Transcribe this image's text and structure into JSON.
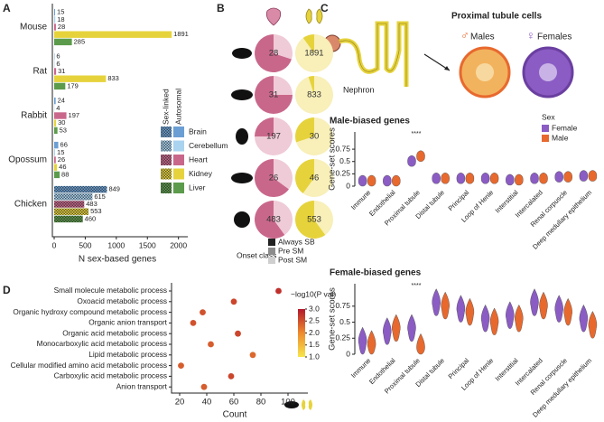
{
  "panels": [
    "A",
    "B",
    "C",
    "D"
  ],
  "diagram": {
    "title": "Proximal tubule cells",
    "male_symbol": "♂",
    "males": "Males",
    "female_symbol": "♀",
    "females": "Females",
    "nephron": "Nephron"
  },
  "chart_data": [
    {
      "type": "bar",
      "categories": [
        "Mouse",
        "Rat",
        "Rabbit",
        "Opossum",
        "Chicken"
      ],
      "series": [
        {
          "name": "Brain",
          "color": "#6b9fd3",
          "values": [
            15,
            6,
            24,
            66,
            849
          ]
        },
        {
          "name": "Cerebellum",
          "color": "#a9d3ef",
          "values": [
            18,
            6,
            4,
            15,
            615
          ]
        },
        {
          "name": "Heart",
          "color": "#c9678b",
          "values": [
            28,
            31,
            197,
            26,
            483
          ]
        },
        {
          "name": "Kidney",
          "color": "#e6d33c",
          "values": [
            1891,
            833,
            30,
            46,
            553
          ]
        },
        {
          "name": "Liver",
          "color": "#5c9b4b",
          "values": [
            285,
            179,
            53,
            88,
            460
          ]
        }
      ],
      "hatched": [
        false,
        false,
        false,
        false,
        true
      ],
      "legend_headers": [
        "Sex-linked",
        "Autosomal"
      ],
      "xlim": [
        0,
        2150
      ],
      "xticks": [
        0,
        500,
        1000,
        1500,
        2000
      ],
      "xlabel": "N sex-based genes"
    },
    {
      "type": "pie",
      "series": [
        {
          "colors": [
            "#c9678b",
            "#efcad7"
          ],
          "counts": [
            28,
            31,
            197,
            26,
            483
          ],
          "shares": [
            [
              70,
              30
            ],
            [
              75,
              25
            ],
            [
              25,
              75
            ],
            [
              65,
              35
            ],
            [
              60,
              40
            ]
          ]
        },
        {
          "colors": [
            "#e6d33c",
            "#f8efb9"
          ],
          "counts": [
            1891,
            833,
            30,
            46,
            553
          ],
          "shares": [
            [
              10,
              90
            ],
            [
              5,
              95
            ],
            [
              30,
              70
            ],
            [
              40,
              60
            ],
            [
              60,
              40
            ]
          ]
        }
      ],
      "legend": {
        "title": "Onset class",
        "entries": [
          {
            "name": "Always SB",
            "color": "#222222"
          },
          {
            "name": "Pre SM",
            "color": "#8c8c8c"
          },
          {
            "name": "Post SM",
            "color": "#cfcfcf"
          }
        ]
      }
    },
    {
      "type": "violin",
      "title": "Male-biased genes",
      "categories": [
        "Immune",
        "Endothelial",
        "Proximal tubule",
        "Distal tubule",
        "Principal",
        "Loop of Henle",
        "Interstitial",
        "Intercalated",
        "Renal corpuscle",
        "Deep medullary epithelium"
      ],
      "series": [
        {
          "name": "Female",
          "color": "#8b5cc4",
          "values": [
            0.1,
            0.1,
            0.5,
            0.15,
            0.15,
            0.15,
            0.12,
            0.15,
            0.18,
            0.2
          ]
        },
        {
          "name": "Male",
          "color": "#e8692e",
          "values": [
            0.1,
            0.1,
            0.6,
            0.15,
            0.15,
            0.15,
            0.12,
            0.15,
            0.18,
            0.2
          ]
        }
      ],
      "legend_title": "Sex",
      "annotation": "****",
      "ylim": [
        0,
        1.1
      ],
      "yticks": [
        0,
        0.25,
        0.5,
        0.75
      ],
      "ylabel": "Gene-set scores"
    },
    {
      "type": "violin",
      "title": "Female-biased genes",
      "categories": [
        "Immune",
        "Endothelial",
        "Proximal tubule",
        "Distal tubule",
        "Principal",
        "Loop of Henle",
        "Interstitial",
        "Intercalated",
        "Renal corpuscle",
        "Deep medullary epithelium"
      ],
      "series": [
        {
          "name": "Female",
          "color": "#8b5cc4",
          "values": [
            0.2,
            0.35,
            0.4,
            0.8,
            0.7,
            0.55,
            0.6,
            0.8,
            0.7,
            0.55
          ]
        },
        {
          "name": "Male",
          "color": "#e8692e",
          "values": [
            0.15,
            0.4,
            0.1,
            0.75,
            0.65,
            0.5,
            0.55,
            0.75,
            0.65,
            0.45
          ]
        }
      ],
      "annotation": "****",
      "ylim": [
        0,
        1.1
      ],
      "yticks": [
        0,
        0.25,
        0.5,
        0.75
      ],
      "ylabel": "Gene-set scores"
    },
    {
      "type": "scatter",
      "categories": [
        "Small molecule metabolic process",
        "Oxoacid metabolic process",
        "Organic hydroxy compound metabolic process",
        "Organic anion transport",
        "Organic acid metabolic process",
        "Monocarboxylic acid metabolic process",
        "Lipid metabolic process",
        "Cellular modified amino acid metabolic process",
        "Carboxylic acid metabolic process",
        "Anion transport"
      ],
      "x": [
        93,
        60,
        37,
        30,
        63,
        43,
        74,
        21,
        58,
        38
      ],
      "values": [
        2.8,
        2.6,
        2.5,
        2.5,
        2.6,
        2.4,
        2.3,
        2.4,
        2.6,
        2.4
      ],
      "xlim": [
        14,
        108
      ],
      "xticks": [
        20,
        40,
        60,
        80,
        100
      ],
      "xlabel": "Count",
      "colorbar": {
        "title": "−log10(P val)",
        "lim": [
          1,
          3
        ],
        "stops": [
          {
            "value": 1,
            "color": "#f7e64b"
          },
          {
            "value": 2,
            "color": "#ee8a2d"
          },
          {
            "value": 3,
            "color": "#b3192c"
          }
        ],
        "ticks": [
          {
            "value": 1,
            "label": "1.0"
          },
          {
            "value": 1.5,
            "label": "1.5"
          },
          {
            "value": 2,
            "label": "2.0"
          },
          {
            "value": 2.5,
            "label": "2.5"
          },
          {
            "value": 3,
            "label": "3.0"
          }
        ]
      }
    }
  ]
}
